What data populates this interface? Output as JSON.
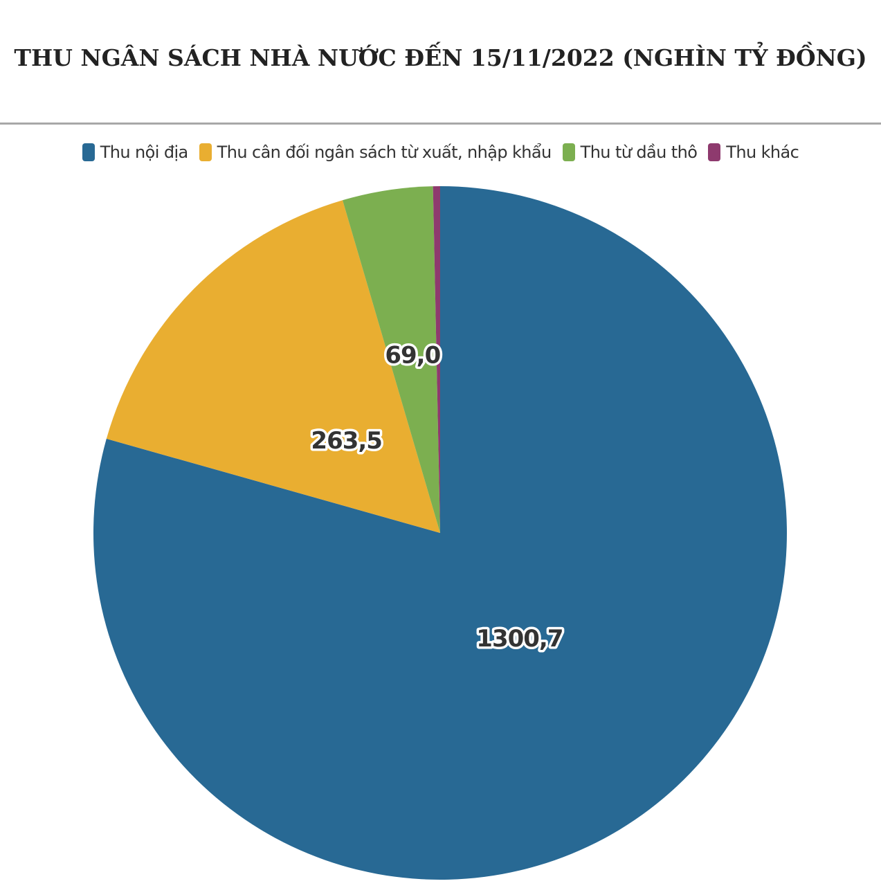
{
  "chart_data": {
    "type": "pie",
    "title": "THU NGÂN SÁCH NHÀ NƯỚC ĐẾN 15/11/2022 (NGHÌN TỶ ĐỒNG)",
    "legend_position": "top",
    "series": [
      {
        "name": "Thu nội địa",
        "value": 1300.7,
        "label": "1300,7",
        "color": "#286994"
      },
      {
        "name": "Thu cân đối ngân sách từ xuất, nhập khẩu",
        "value": 263.5,
        "label": "263,5",
        "color": "#e9ae31"
      },
      {
        "name": "Thu từ dầu thô",
        "value": 69.0,
        "label": "69,0",
        "color": "#7caf50"
      },
      {
        "name": "Thu khác",
        "value": 5.4,
        "label": "",
        "color": "#8e3a6e"
      }
    ]
  }
}
